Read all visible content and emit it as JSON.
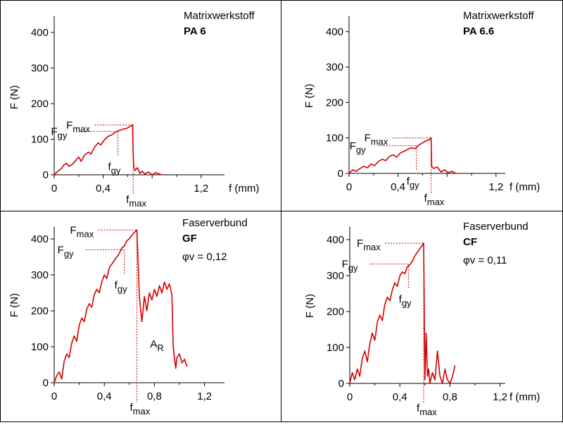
{
  "chart_data": [
    {
      "type": "line",
      "panel_label": "Matrixwerkstoff",
      "material": "PA 6",
      "material_sub": "",
      "xlabel": "f (mm)",
      "ylabel": "F (N)",
      "xlim": [
        0,
        1.35
      ],
      "ylim": [
        0,
        430
      ],
      "x_ticks": [
        0,
        0.4,
        0.8,
        1.2
      ],
      "x_tick_labels": [
        "0",
        "0,4",
        "",
        "1,2"
      ],
      "y_ticks": [
        0,
        100,
        200,
        300,
        400
      ],
      "y_tick_labels": [
        "0",
        "100",
        "200",
        "300",
        "400"
      ],
      "color": "#d40000",
      "series": [
        {
          "x": [
            0,
            0.03,
            0.06,
            0.08,
            0.1,
            0.12,
            0.15,
            0.18,
            0.2,
            0.22,
            0.25,
            0.28,
            0.3,
            0.33,
            0.36,
            0.38,
            0.41,
            0.44,
            0.47,
            0.5,
            0.53,
            0.56,
            0.59,
            0.62,
            0.64,
            0.645,
            0.65,
            0.66,
            0.68,
            0.7,
            0.72,
            0.74,
            0.77,
            0.8,
            0.83,
            0.86,
            0.88
          ],
          "y": [
            0,
            10,
            18,
            28,
            32,
            24,
            30,
            42,
            50,
            38,
            56,
            64,
            58,
            78,
            90,
            84,
            98,
            108,
            112,
            120,
            124,
            128,
            130,
            136,
            140,
            60,
            22,
            12,
            20,
            4,
            10,
            2,
            8,
            0,
            6,
            2,
            0
          ]
        }
      ],
      "annotations": [
        {
          "text": "Fmax",
          "main": "F",
          "sub": "max",
          "x": 0.645,
          "y": 140
        },
        {
          "text": "Fgy",
          "main": "F",
          "sub": "gy",
          "x": 0.52,
          "y": 122
        },
        {
          "text": "fgy",
          "main": "f",
          "sub": "gy",
          "x": 0.52,
          "y": 0
        },
        {
          "text": "fmax",
          "main": "f",
          "sub": "max",
          "x": 0.645,
          "y": 0
        }
      ]
    },
    {
      "type": "line",
      "panel_label": "Matrixwerkstoff",
      "material": "PA 6.6",
      "material_sub": "",
      "xlabel": "f (mm)",
      "ylabel": "F (N)",
      "xlim": [
        0,
        1.35
      ],
      "ylim": [
        0,
        430
      ],
      "x_ticks": [
        0,
        0.4,
        0.8,
        1.2
      ],
      "x_tick_labels": [
        "0",
        "0,4",
        "",
        "1,2"
      ],
      "y_ticks": [
        0,
        100,
        200,
        300,
        400
      ],
      "y_tick_labels": [
        "0",
        "100",
        "200",
        "300",
        "400"
      ],
      "color": "#d40000",
      "series": [
        {
          "x": [
            0,
            0.03,
            0.06,
            0.09,
            0.12,
            0.15,
            0.18,
            0.21,
            0.24,
            0.27,
            0.3,
            0.33,
            0.36,
            0.39,
            0.42,
            0.45,
            0.48,
            0.51,
            0.54,
            0.57,
            0.6,
            0.63,
            0.66,
            0.67,
            0.675,
            0.69,
            0.72,
            0.75,
            0.78,
            0.81,
            0.84,
            0.87
          ],
          "y": [
            0,
            10,
            6,
            14,
            20,
            16,
            26,
            22,
            34,
            40,
            36,
            48,
            52,
            46,
            58,
            62,
            68,
            72,
            70,
            80,
            86,
            92,
            96,
            100,
            20,
            14,
            18,
            4,
            10,
            2,
            6,
            0
          ]
        }
      ],
      "annotations": [
        {
          "text": "Fmax",
          "main": "F",
          "sub": "max",
          "x": 0.67,
          "y": 100
        },
        {
          "text": "Fgy",
          "main": "F",
          "sub": "gy",
          "x": 0.55,
          "y": 78
        },
        {
          "text": "fgy",
          "main": "f",
          "sub": "gy",
          "x": 0.55,
          "y": 0
        },
        {
          "text": "fmax",
          "main": "f",
          "sub": "max",
          "x": 0.67,
          "y": 0
        }
      ]
    },
    {
      "type": "line",
      "panel_label": "Faserverbund",
      "material": "GF",
      "material_sub": "φv = 0,12",
      "xlabel": "",
      "ylabel": "F (N)",
      "xlim": [
        0,
        1.35
      ],
      "ylim": [
        0,
        430
      ],
      "x_ticks": [
        0,
        0.4,
        0.8,
        1.2
      ],
      "x_tick_labels": [
        "0",
        "0,4",
        "0,8",
        "1,2"
      ],
      "y_ticks": [
        0,
        100,
        200,
        300,
        400
      ],
      "y_tick_labels": [
        "0",
        "100",
        "200",
        "300",
        "400"
      ],
      "color": "#d40000",
      "series": [
        {
          "x": [
            0,
            0.02,
            0.04,
            0.06,
            0.08,
            0.1,
            0.12,
            0.14,
            0.16,
            0.18,
            0.2,
            0.22,
            0.24,
            0.26,
            0.28,
            0.3,
            0.32,
            0.34,
            0.36,
            0.38,
            0.4,
            0.42,
            0.44,
            0.46,
            0.48,
            0.5,
            0.52,
            0.54,
            0.56,
            0.58,
            0.6,
            0.62,
            0.64,
            0.66,
            0.67,
            0.68,
            0.7,
            0.72,
            0.74,
            0.76,
            0.78,
            0.8,
            0.82,
            0.84,
            0.86,
            0.88,
            0.9,
            0.92,
            0.94,
            0.95,
            0.97,
            0.98,
            1.0,
            1.02,
            1.04,
            1.06
          ],
          "y": [
            0,
            20,
            30,
            10,
            60,
            80,
            70,
            110,
            130,
            115,
            160,
            180,
            170,
            205,
            220,
            210,
            245,
            260,
            250,
            280,
            300,
            290,
            320,
            330,
            340,
            350,
            360,
            375,
            380,
            395,
            400,
            410,
            418,
            425,
            330,
            240,
            170,
            240,
            200,
            250,
            230,
            260,
            240,
            270,
            250,
            280,
            260,
            275,
            245,
            100,
            40,
            70,
            80,
            55,
            65,
            45
          ]
        }
      ],
      "annotations": [
        {
          "text": "Fmax",
          "main": "F",
          "sub": "max",
          "x": 0.66,
          "y": 425
        },
        {
          "text": "Fgy",
          "main": "F",
          "sub": "gy",
          "x": 0.56,
          "y": 370
        },
        {
          "text": "fgy",
          "main": "f",
          "sub": "gy",
          "x": 0.56,
          "y": 0
        },
        {
          "text": "fmax",
          "main": "f",
          "sub": "max",
          "x": 0.66,
          "y": 0
        },
        {
          "text": "AR",
          "main": "A",
          "sub": "R",
          "x": 0.8,
          "y": 0
        }
      ]
    },
    {
      "type": "line",
      "panel_label": "Faserverbund",
      "material": "CF",
      "material_sub": "φv = 0,11",
      "xlabel": "f (mm)",
      "ylabel": "F (N)",
      "xlim": [
        0,
        1.35
      ],
      "ylim": [
        0,
        430
      ],
      "x_ticks": [
        0,
        0.4,
        0.8,
        1.2
      ],
      "x_tick_labels": [
        "0",
        "0,4",
        "0,8",
        "1,2"
      ],
      "y_ticks": [
        0,
        100,
        200,
        300,
        400
      ],
      "y_tick_labels": [
        "0",
        "100",
        "200",
        "300",
        "400"
      ],
      "color": "#d40000",
      "series": [
        {
          "x": [
            0,
            0.02,
            0.04,
            0.06,
            0.08,
            0.1,
            0.12,
            0.14,
            0.16,
            0.18,
            0.2,
            0.22,
            0.24,
            0.26,
            0.28,
            0.3,
            0.32,
            0.34,
            0.36,
            0.38,
            0.4,
            0.42,
            0.44,
            0.46,
            0.48,
            0.5,
            0.52,
            0.54,
            0.56,
            0.58,
            0.59,
            0.6,
            0.61,
            0.62,
            0.63,
            0.64,
            0.66,
            0.68,
            0.7,
            0.72,
            0.74,
            0.76,
            0.78,
            0.8,
            0.82,
            0.84
          ],
          "y": [
            0,
            30,
            10,
            40,
            20,
            70,
            90,
            60,
            110,
            140,
            120,
            170,
            190,
            175,
            220,
            240,
            230,
            260,
            280,
            270,
            300,
            310,
            305,
            325,
            330,
            340,
            355,
            365,
            375,
            385,
            390,
            10,
            140,
            20,
            40,
            0,
            30,
            10,
            90,
            20,
            0,
            40,
            10,
            0,
            20,
            50
          ]
        }
      ],
      "annotations": [
        {
          "text": "Fmax",
          "main": "F",
          "sub": "max",
          "x": 0.59,
          "y": 390
        },
        {
          "text": "Fgy",
          "main": "F",
          "sub": "gy",
          "x": 0.47,
          "y": 332
        },
        {
          "text": "fgy",
          "main": "f",
          "sub": "gy",
          "x": 0.47,
          "y": 0
        },
        {
          "text": "fmax",
          "main": "f",
          "sub": "max",
          "x": 0.59,
          "y": 0
        }
      ]
    }
  ]
}
